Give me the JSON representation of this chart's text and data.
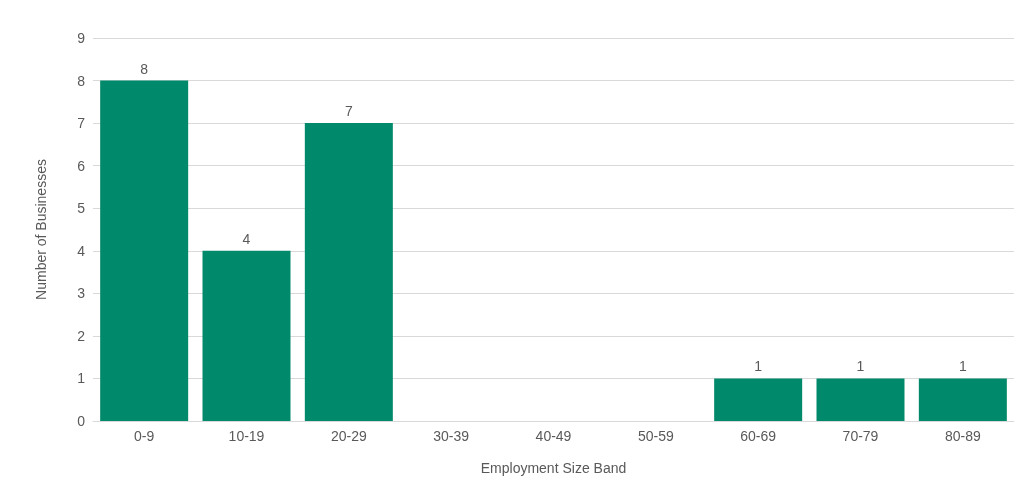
{
  "chart_data": {
    "type": "bar",
    "xlabel": "Employment Size Band",
    "ylabel": "Number of Businesses",
    "categories": [
      "0-9",
      "10-19",
      "20-29",
      "30-39",
      "40-49",
      "50-59",
      "60-69",
      "70-79",
      "80-89"
    ],
    "values": [
      8,
      4,
      7,
      0,
      0,
      0,
      1,
      1,
      1
    ],
    "value_labels": [
      "8",
      "4",
      "7",
      null,
      null,
      null,
      "1",
      "1",
      "1"
    ],
    "color": "#00896a",
    "ylim": [
      0,
      9
    ],
    "yticks": [
      0,
      1,
      2,
      3,
      4,
      5,
      6,
      7,
      8,
      9
    ],
    "grid": "y"
  }
}
